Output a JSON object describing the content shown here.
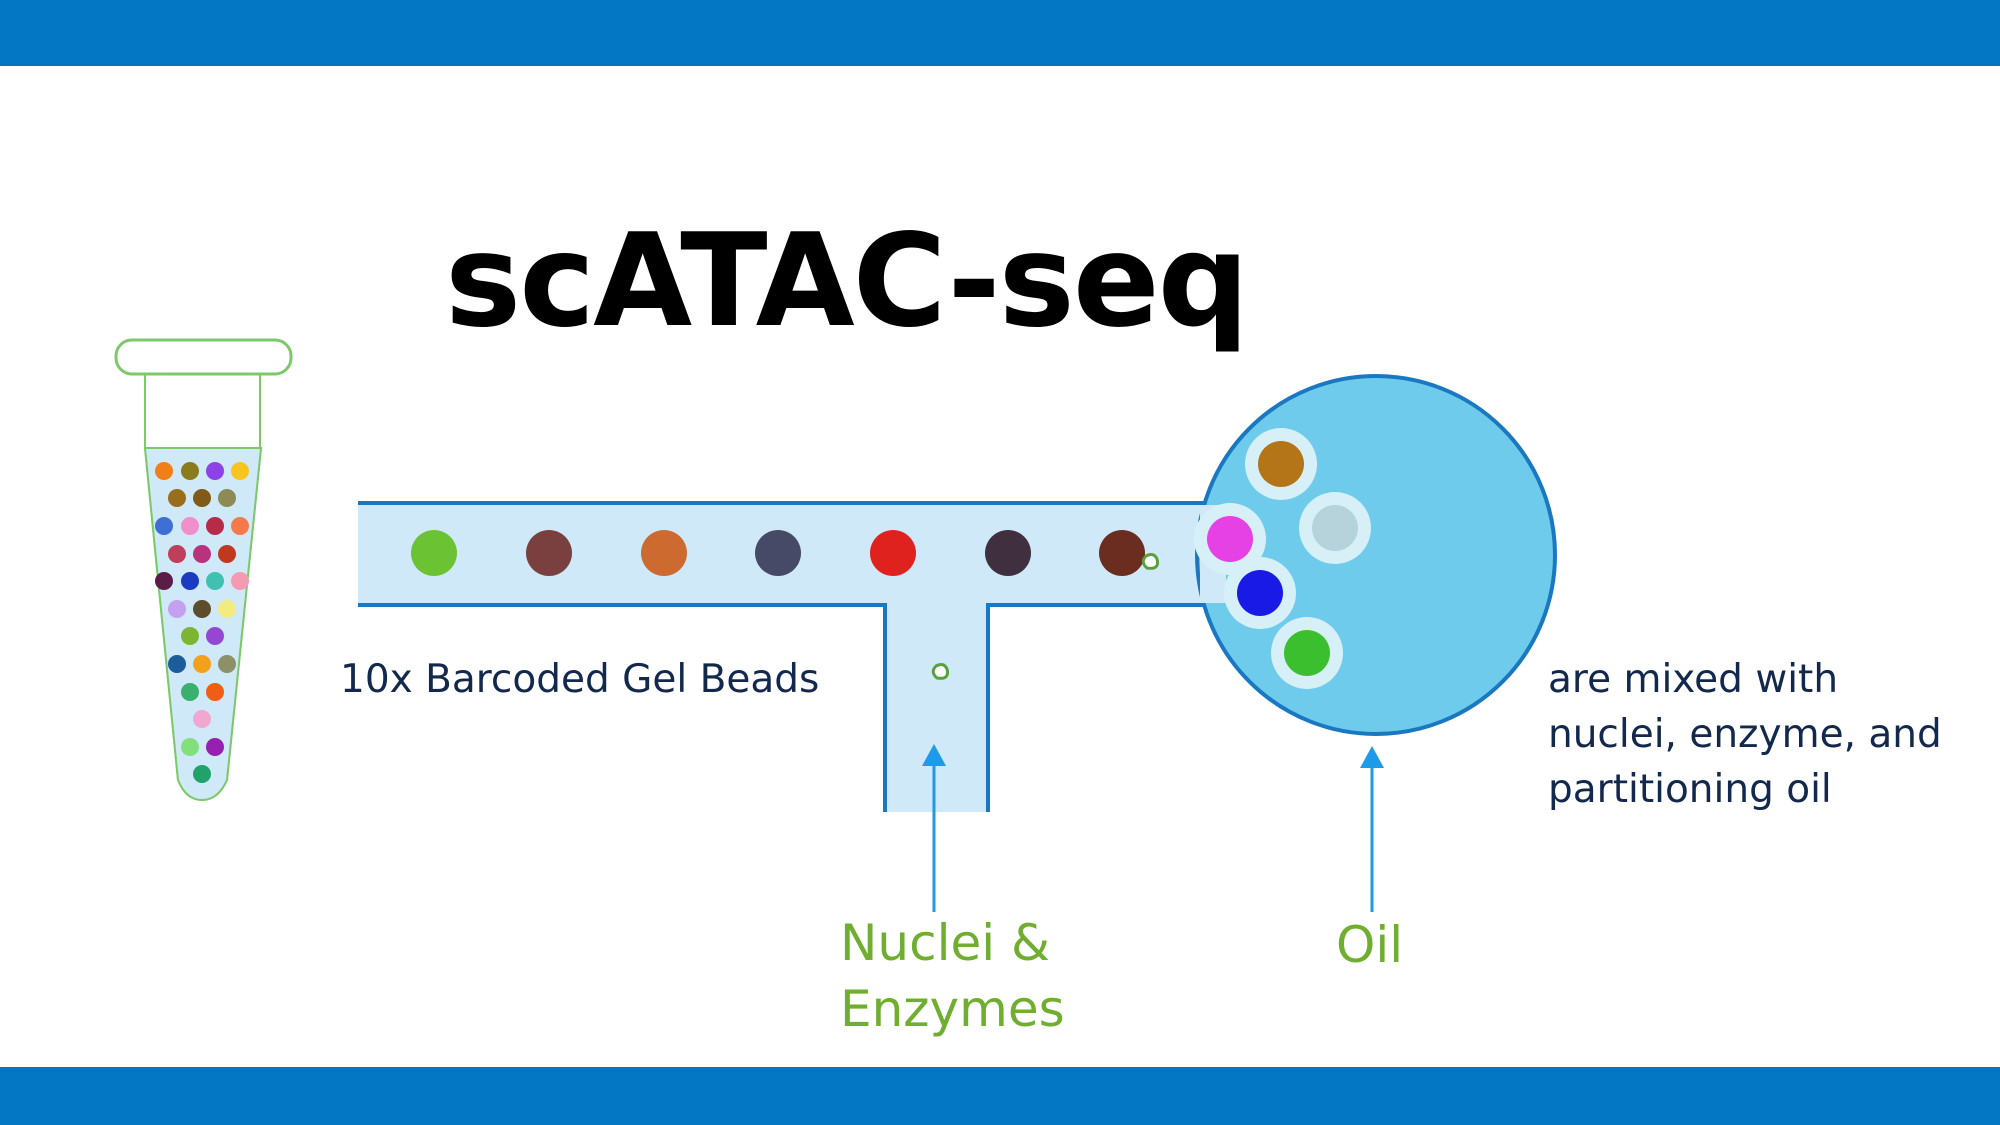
{
  "title": "scATAC-seq",
  "labels": {
    "gel_beads": "10x Barcoded Gel Beads",
    "nuclei_line1": "Nuclei &",
    "nuclei_line2": "Enzymes",
    "oil": "Oil",
    "mixed_line1": "are mixed with",
    "mixed_line2": "nuclei, enzyme, and",
    "mixed_line3": "partitioning oil"
  },
  "colors": {
    "band": "#0377c4",
    "channel_fill": "#cfe9f9",
    "channel_stroke": "#1a78c2",
    "chamber_fill": "#6ecbeb",
    "arrow": "#1e9be8",
    "label_navy": "#13284d",
    "label_green": "#6fae2f"
  },
  "channel_beads": [
    "#6bc232",
    "#7a4040",
    "#cd6a30",
    "#474a66",
    "#e0221e",
    "#40303f",
    "#6b2d20"
  ],
  "droplet_beads": [
    "#b47418",
    "#e541e4",
    "#b6d3db",
    "#1a1ae6",
    "#3cbf2e"
  ],
  "tube_beads": [
    [
      "#f07f17",
      "#8a7c1d",
      "#8c42e5",
      "#f7c420"
    ],
    [
      "#9a6c1c",
      "#7f5b17",
      "#8d8a55"
    ],
    [
      "#3d6fd4",
      "#f08fcc",
      "#b52b48",
      "#f37b4b"
    ],
    [
      "#bd3f5a",
      "#b8327e",
      "#c0391e"
    ],
    [
      "#5b1d48",
      "#1b3cc2",
      "#3fc1b1",
      "#f59ab1"
    ],
    [
      "#c59ff0",
      "#5e4d2c",
      "#f2ec7e"
    ],
    [
      "#7db533",
      "#9647cf"
    ],
    [
      "#1b5c9a",
      "#f3a11c",
      "#8d9168"
    ],
    [
      "#3aaf6e",
      "#f05d13"
    ],
    [
      "#f1a8d0"
    ],
    [
      "#82e07c",
      "#9620b0"
    ],
    [
      "#21a26b"
    ]
  ]
}
